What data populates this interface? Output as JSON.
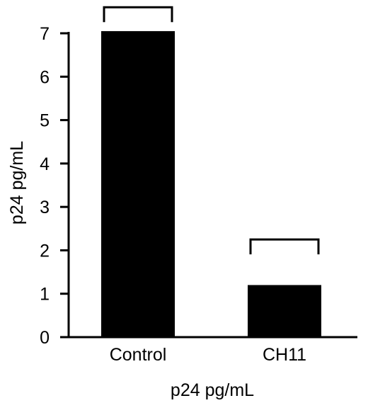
{
  "chart_data": {
    "type": "bar",
    "categories": [
      "Control",
      "CH11"
    ],
    "values": [
      7.05,
      1.2
    ],
    "error_brackets": [
      7.6,
      2.25
    ],
    "ylabel": "p24 pg/mL",
    "xlabel": "p24 pg/mL",
    "ylim": [
      0,
      7
    ],
    "yticks": [
      "0",
      "1",
      "2",
      "3",
      "4",
      "5",
      "6",
      "7"
    ],
    "bar_color": "#000000",
    "grid": false,
    "legend": "none"
  }
}
